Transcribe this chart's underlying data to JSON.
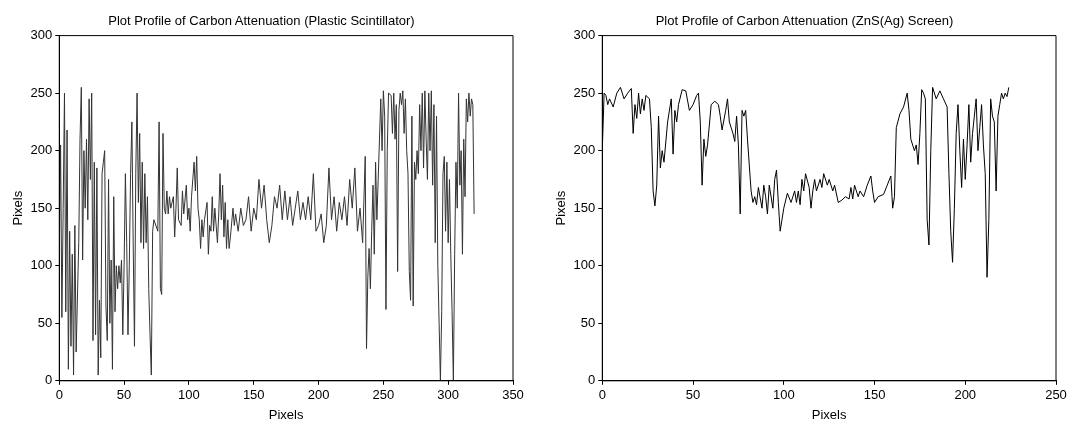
{
  "chart_data": [
    {
      "type": "line",
      "title": "Plot Profile of Carbon Attenuation (Plastic Scintillator)",
      "xlabel": "Pixels",
      "ylabel": "Pixels",
      "color": "#333333",
      "xlim": [
        0,
        350
      ],
      "ylim": [
        0,
        300
      ],
      "xticks": [
        0,
        50,
        100,
        150,
        200,
        250,
        300,
        350
      ],
      "yticks": [
        0,
        50,
        100,
        150,
        200,
        250,
        300
      ],
      "grid": false,
      "legend": false,
      "x": [
        0,
        1,
        2,
        3,
        4,
        5,
        6,
        7,
        8,
        9,
        10,
        11,
        12,
        13,
        15,
        16,
        17,
        18,
        19,
        20,
        21,
        22,
        23,
        24,
        25,
        26,
        27,
        28,
        29,
        30,
        31,
        32,
        33,
        34,
        35,
        36,
        37,
        38,
        39,
        40,
        41,
        42,
        43,
        44,
        45,
        46,
        47,
        48,
        49,
        50,
        51,
        52,
        53,
        54,
        55,
        56,
        57,
        58,
        59,
        60,
        61,
        62,
        63,
        64,
        65,
        66,
        67,
        68,
        69,
        70,
        71,
        72,
        73,
        76,
        77,
        78,
        79,
        80,
        81,
        82,
        83,
        84,
        85,
        86,
        88,
        89,
        90,
        91,
        92,
        94,
        95,
        96,
        98,
        99,
        100,
        101,
        102,
        104,
        105,
        106,
        107,
        108,
        109,
        110,
        111,
        112,
        114,
        115,
        116,
        117,
        118,
        119,
        120,
        122,
        123,
        124,
        125,
        126,
        127,
        128,
        129,
        130,
        131,
        132,
        134,
        135,
        136,
        138,
        140,
        142,
        144,
        146,
        148,
        150,
        152,
        154,
        156,
        158,
        160,
        162,
        164,
        166,
        168,
        170,
        172,
        174,
        176,
        178,
        180,
        182,
        184,
        186,
        188,
        190,
        192,
        194,
        196,
        198,
        200,
        202,
        204,
        206,
        208,
        210,
        212,
        214,
        216,
        218,
        220,
        222,
        224,
        226,
        228,
        230,
        232,
        234,
        236,
        237,
        238,
        239,
        240,
        241,
        242,
        243,
        244,
        245,
        246,
        248,
        249,
        250,
        251,
        252,
        253,
        254,
        256,
        257,
        258,
        259,
        260,
        261,
        262,
        263,
        264,
        265,
        266,
        267,
        268,
        269,
        270,
        271,
        272,
        273,
        274,
        275,
        276,
        277,
        278,
        279,
        280,
        281,
        282,
        283,
        284,
        285,
        286,
        287,
        288,
        289,
        290,
        291,
        292,
        293,
        294,
        295,
        296,
        297,
        298,
        299,
        300,
        301,
        302,
        303,
        304,
        305,
        306,
        307,
        308,
        309,
        310,
        311,
        312,
        313,
        314,
        315,
        316,
        317,
        318,
        319,
        320
      ],
      "values": [
        110,
        205,
        55,
        150,
        250,
        60,
        218,
        10,
        130,
        30,
        110,
        5,
        135,
        25,
        120,
        210,
        255,
        105,
        200,
        150,
        210,
        140,
        245,
        175,
        250,
        35,
        190,
        40,
        185,
        5,
        70,
        20,
        180,
        190,
        200,
        65,
        35,
        175,
        50,
        105,
        10,
        160,
        60,
        100,
        80,
        100,
        85,
        105,
        40,
        100,
        180,
        120,
        40,
        100,
        180,
        225,
        120,
        30,
        180,
        250,
        155,
        215,
        120,
        190,
        115,
        180,
        120,
        160,
        80,
        40,
        5,
        130,
        140,
        130,
        225,
        80,
        75,
        215,
        150,
        145,
        165,
        145,
        160,
        150,
        160,
        125,
        150,
        185,
        140,
        135,
        165,
        145,
        170,
        140,
        150,
        130,
        160,
        190,
        165,
        195,
        150,
        140,
        115,
        140,
        125,
        140,
        155,
        110,
        135,
        130,
        160,
        130,
        150,
        120,
        145,
        180,
        140,
        170,
        125,
        155,
        115,
        140,
        115,
        125,
        150,
        135,
        145,
        130,
        150,
        135,
        140,
        160,
        130,
        150,
        140,
        175,
        150,
        170,
        140,
        120,
        135,
        160,
        150,
        170,
        140,
        165,
        140,
        160,
        135,
        150,
        165,
        140,
        155,
        140,
        160,
        140,
        180,
        130,
        135,
        145,
        120,
        135,
        185,
        140,
        160,
        130,
        155,
        140,
        160,
        135,
        175,
        150,
        185,
        130,
        150,
        120,
        195,
        28,
        90,
        115,
        80,
        130,
        170,
        110,
        190,
        140,
        175,
        245,
        200,
        252,
        230,
        62,
        200,
        250,
        248,
        215,
        250,
        210,
        240,
        95,
        235,
        250,
        240,
        252,
        215,
        245,
        200,
        180,
        95,
        70,
        230,
        65,
        190,
        175,
        200,
        180,
        240,
        200,
        250,
        185,
        252,
        210,
        175,
        250,
        200,
        252,
        170,
        240,
        120,
        230,
        100,
        50,
        0,
        60,
        180,
        195,
        130,
        190,
        120,
        175,
        110,
        60,
        0,
        110,
        190,
        150,
        250,
        170,
        200,
        110,
        210,
        160,
        245,
        225,
        250,
        230,
        245,
        240,
        145
      ]
    },
    {
      "type": "line",
      "title": "Plot Profile of Carbon Attenuation (ZnS(Ag) Screen)",
      "xlabel": "Pixels",
      "ylabel": "Pixels",
      "color": "#000000",
      "xlim": [
        0,
        250
      ],
      "ylim": [
        0,
        300
      ],
      "xticks": [
        0,
        50,
        100,
        150,
        200,
        250
      ],
      "yticks": [
        0,
        50,
        100,
        150,
        200,
        250,
        300
      ],
      "grid": false,
      "legend": false,
      "x": [
        0,
        1,
        2,
        3,
        4,
        6,
        8,
        10,
        12,
        14,
        16,
        17,
        18,
        19,
        20,
        21,
        22,
        23,
        24,
        26,
        27,
        28,
        29,
        30,
        31,
        32,
        33,
        34,
        36,
        38,
        39,
        40,
        41,
        42,
        44,
        46,
        48,
        50,
        52,
        53,
        54,
        55,
        56,
        57,
        58,
        60,
        62,
        64,
        65,
        66,
        68,
        69,
        70,
        72,
        73,
        74,
        75,
        76,
        77,
        78,
        79,
        80,
        82,
        83,
        84,
        85,
        86,
        88,
        89,
        90,
        91,
        92,
        94,
        95,
        96,
        97,
        98,
        99,
        100,
        102,
        104,
        106,
        107,
        108,
        109,
        110,
        111,
        112,
        114,
        115,
        116,
        117,
        118,
        120,
        121,
        122,
        124,
        125,
        127,
        128,
        130,
        132,
        134,
        136,
        137,
        138,
        139,
        140,
        141,
        142,
        144,
        146,
        148,
        149,
        150,
        152,
        155,
        157,
        159,
        160,
        161,
        162,
        164,
        166,
        168,
        169,
        170,
        172,
        173,
        174,
        175,
        176,
        177,
        178,
        179,
        180,
        181,
        182,
        184,
        186,
        188,
        190,
        191,
        192,
        193,
        194,
        195,
        196,
        197,
        198,
        199,
        200,
        201,
        202,
        203,
        204,
        205,
        206,
        207,
        208,
        209,
        210,
        211,
        212,
        213,
        214,
        215,
        216,
        217,
        218,
        219,
        220,
        221,
        222,
        223,
        224
      ],
      "values": [
        200,
        250,
        248,
        240,
        245,
        238,
        250,
        255,
        245,
        250,
        254,
        215,
        240,
        228,
        250,
        232,
        245,
        235,
        248,
        245,
        220,
        165,
        152,
        170,
        230,
        185,
        200,
        190,
        225,
        245,
        197,
        235,
        225,
        240,
        253,
        252,
        235,
        240,
        248,
        250,
        225,
        170,
        210,
        195,
        205,
        240,
        243,
        240,
        230,
        218,
        235,
        245,
        225,
        215,
        208,
        230,
        205,
        145,
        235,
        230,
        235,
        210,
        165,
        155,
        160,
        153,
        168,
        150,
        170,
        160,
        145,
        170,
        150,
        175,
        183,
        155,
        130,
        140,
        150,
        163,
        155,
        165,
        155,
        165,
        153,
        175,
        165,
        180,
        168,
        150,
        165,
        175,
        165,
        175,
        168,
        180,
        170,
        175,
        165,
        170,
        155,
        157,
        160,
        158,
        168,
        158,
        170,
        165,
        160,
        165,
        160,
        170,
        178,
        165,
        155,
        160,
        162,
        170,
        178,
        150,
        160,
        220,
        232,
        238,
        250,
        235,
        210,
        200,
        205,
        188,
        215,
        253,
        250,
        245,
        140,
        118,
        200,
        255,
        245,
        252,
        245,
        238,
        180,
        130,
        103,
        150,
        215,
        240,
        200,
        168,
        210,
        175,
        205,
        240,
        190,
        215,
        230,
        245,
        200,
        220,
        240,
        205,
        180,
        90,
        140,
        245,
        230,
        225,
        165,
        230,
        240,
        250,
        245,
        250,
        247,
        255
      ]
    }
  ]
}
